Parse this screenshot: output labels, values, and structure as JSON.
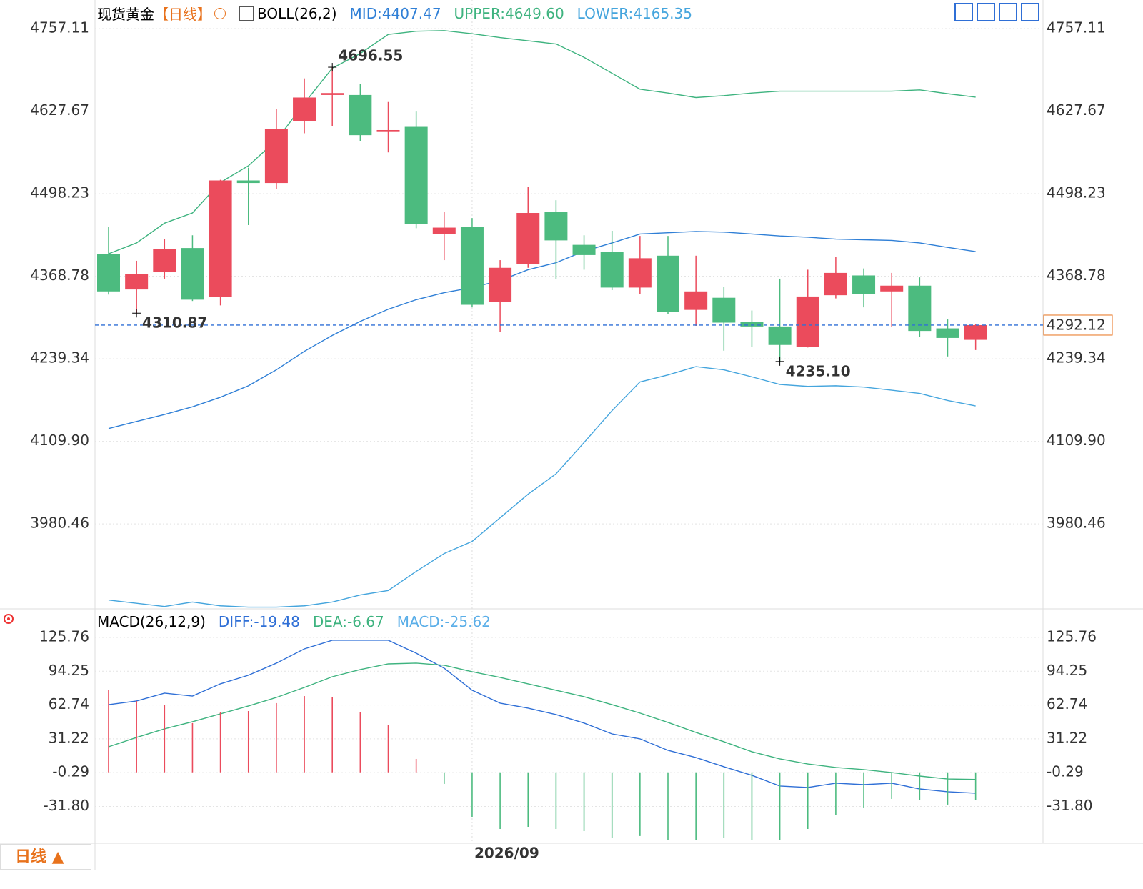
{
  "chart_data": [
    {
      "type": "candlestick",
      "title": "现货黄金",
      "period": "【日线】",
      "indicator": "BOLL(26,2)",
      "categories": [
        null,
        null,
        null,
        null,
        null,
        null,
        null,
        null,
        null,
        null,
        null,
        null,
        null,
        "2026/09",
        null,
        null,
        null,
        null,
        null,
        null,
        null,
        null,
        null,
        null,
        null,
        null,
        null,
        null,
        null,
        null,
        null,
        null
      ],
      "open": [
        4404,
        4348,
        4375,
        4413,
        4336,
        4519,
        4515,
        4612,
        4653,
        4653,
        4595,
        4603,
        4435,
        4446,
        4329,
        4388,
        4470,
        4418,
        4407,
        4351,
        4401,
        4316,
        4335,
        4297,
        4290,
        4258,
        4339,
        4370,
        4345,
        4354,
        4287,
        4269
      ],
      "high": [
        4446,
        4393,
        4427,
        4433,
        4520,
        4539,
        4631,
        4679,
        4696.55,
        4670,
        4642,
        4627,
        4470,
        4460,
        4394,
        4509,
        4488,
        4433,
        4440,
        4432,
        4432,
        4401,
        4352,
        4315,
        4365,
        4379,
        4399,
        4381,
        4374,
        4367,
        4301,
        4294
      ],
      "low": [
        4340,
        4310.87,
        4365,
        4330,
        4323,
        4449,
        4506,
        4593,
        4604,
        4581,
        4563,
        4444,
        4394,
        4320,
        4281,
        4382,
        4364,
        4379,
        4347,
        4341,
        4309,
        4291,
        4252,
        4258,
        4235.1,
        4257,
        4334,
        4320,
        4289,
        4274,
        4243,
        4253
      ],
      "close": [
        4345,
        4372,
        4411,
        4332,
        4519,
        4515,
        4600,
        4649,
        4656,
        4590,
        4598,
        4451,
        4445,
        4324,
        4382,
        4468,
        4425,
        4402,
        4351,
        4397,
        4313,
        4345,
        4296,
        4290,
        4261,
        4337,
        4374,
        4341,
        4354,
        4283,
        4272,
        4292.12
      ],
      "up_color": "#eb4b5c",
      "down_color": "#4cbb7f",
      "series": [
        {
          "name": "MID",
          "label": "MID:4407.47",
          "color": "#2f7fd6",
          "values": [
            4130,
            4141,
            4152,
            4164,
            4179,
            4197,
            4222,
            4251,
            4276,
            4298,
            4317,
            4332,
            4343,
            4351,
            4362,
            4379,
            4390,
            4408,
            4421,
            4435,
            4437,
            4439,
            4438,
            4435,
            4432,
            4430,
            4427,
            4426,
            4425,
            4421,
            4414,
            4407.47
          ]
        },
        {
          "name": "UPPER",
          "label": "UPPER:4649.60",
          "color": "#3eb37f",
          "values": [
            4404,
            4421,
            4452,
            4468,
            4516,
            4542,
            4582,
            4640,
            4695,
            4718,
            4748,
            4753,
            4754,
            4749,
            4743,
            4738,
            4733,
            4712,
            4687,
            4662,
            4656,
            4649,
            4652,
            4656,
            4659,
            4659,
            4659,
            4659,
            4659,
            4661,
            4655,
            4649.6
          ]
        },
        {
          "name": "LOWER",
          "label": "LOWER:4165.35",
          "color": "#45a5dd",
          "values": [
            3861,
            3856,
            3851,
            3858,
            3852,
            3850,
            3850,
            3852,
            3858,
            3869,
            3876,
            3906,
            3934,
            3953,
            3990,
            4027,
            4059,
            4108,
            4158,
            4203,
            4214,
            4227,
            4222,
            4211,
            4199,
            4196,
            4197,
            4195,
            4190,
            4185,
            4174,
            4165.35
          ]
        }
      ],
      "high_markers": [
        {
          "index": 8,
          "label": "4696.55"
        }
      ],
      "low_markers": [
        {
          "index": 1,
          "label": "4310.87"
        },
        {
          "index": 24,
          "label": "4235.10"
        }
      ],
      "last_price": 4292.12,
      "ylim": [
        3845,
        4770
      ],
      "yticks": [
        4757.11,
        4627.67,
        4498.23,
        4368.78,
        4239.34,
        {
          "value": 4109.9,
          "label": "4109.90"
        },
        3980.46
      ],
      "grid": true
    },
    {
      "type": "macd",
      "title": "MACD(26,12,9)",
      "up_color": "#eb4b5c",
      "down_color": "#4cbb7f",
      "series": [
        {
          "name": "DIFF",
          "label": "DIFF:-19.48",
          "color": "#2f6fd6",
          "values": [
            63.1,
            66.5,
            73.8,
            71.1,
            82.5,
            90.5,
            101.8,
            115.1,
            123.1,
            123.1,
            123.1,
            111.1,
            97.1,
            76.5,
            64.5,
            59.8,
            53.8,
            45.9,
            35.8,
            31.2,
            20.5,
            13.8,
            5.2,
            -2.8,
            -12.8,
            -14.1,
            -10.1,
            -11.5,
            -10.1,
            -15.5,
            -18.1,
            -19.48
          ]
        },
        {
          "name": "DEA",
          "label": "DEA:-6.67",
          "color": "#3eb37f",
          "values": [
            23.8,
            32.5,
            40.5,
            47.2,
            54.5,
            61.8,
            69.8,
            79.1,
            89.1,
            95.8,
            101.1,
            101.8,
            99.8,
            93.8,
            88.5,
            82.5,
            76.5,
            70.5,
            63.1,
            55.2,
            46.5,
            37.2,
            28.5,
            19.2,
            12.5,
            7.8,
            4.5,
            2.5,
            -0.2,
            -3.5,
            -6.2,
            -6.67
          ]
        },
        {
          "name": "MACD",
          "label": "MACD:-25.62",
          "color": "#5aaee8",
          "values": [
            76.5,
            66.5,
            63.1,
            45.9,
            55.8,
            57.1,
            64.5,
            71.1,
            69.8,
            55.8,
            43.8,
            12.5,
            -10.8,
            -41.5,
            -52.8,
            -50.8,
            -52.8,
            -54.8,
            -60.8,
            -59.4,
            -63.4,
            -63.4,
            -60.8,
            -63.4,
            -63.4,
            -52.8,
            -39.5,
            -32.8,
            -24.8,
            -26.1,
            -30.1,
            -25.62
          ]
        }
      ],
      "ylim": [
        -64.8,
        148.4
      ],
      "yticks": [
        125.76,
        94.25,
        62.74,
        31.22,
        -0.29,
        {
          "value": -31.8,
          "label": "-31.80"
        }
      ],
      "grid": true
    },
    {
      "type": "button",
      "period_button": "日线 ▲"
    }
  ]
}
